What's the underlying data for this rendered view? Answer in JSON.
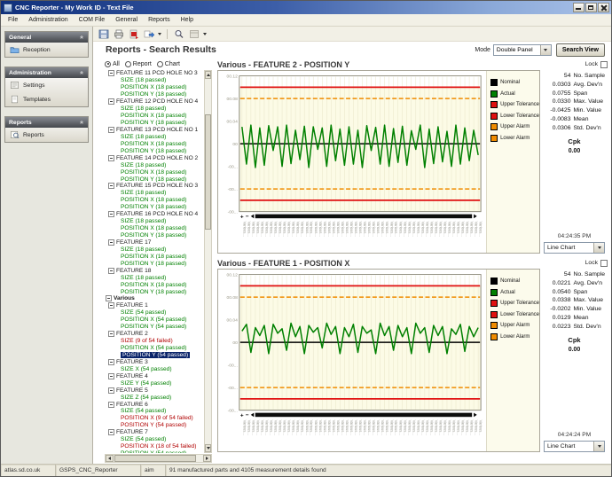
{
  "window": {
    "title": "CNC Reporter - My Work ID - Text File",
    "controls": [
      "minimize",
      "maximize",
      "close"
    ]
  },
  "menu": {
    "items": [
      "File",
      "Administration",
      "COM File",
      "General",
      "Reports",
      "Help"
    ]
  },
  "toolbar": {
    "icons": [
      "save-icon",
      "print-icon",
      "pdf-export-icon",
      "export-icon",
      "caret",
      "separator",
      "zoom-icon",
      "preview-icon",
      "caret"
    ]
  },
  "sidebar": {
    "panels": [
      {
        "title": "General",
        "items": [
          {
            "label": "Reception",
            "icon": "folder-icon"
          }
        ]
      },
      {
        "title": "Administration",
        "items": [
          {
            "label": "Settings",
            "icon": "settings-icon"
          },
          {
            "label": "Templates",
            "icon": "template-icon"
          }
        ]
      },
      {
        "title": "Reports",
        "items": [
          {
            "label": "Reports",
            "icon": "report-search-icon"
          }
        ]
      }
    ]
  },
  "main": {
    "heading": "Reports - Search Results",
    "mode_label": "Mode",
    "mode_value": "Double Panel",
    "search_view_label": "Search View",
    "filter_radios": [
      {
        "label": "All",
        "selected": true
      },
      {
        "label": "Report",
        "selected": false
      },
      {
        "label": "Chart",
        "selected": false
      }
    ]
  },
  "tree": {
    "nodes": [
      {
        "level": 1,
        "text": "FEATURE 11 PCD HOLE NO 3",
        "kind": "h"
      },
      {
        "level": 2,
        "text": "SIZE (18 passed)",
        "kind": "g"
      },
      {
        "level": 2,
        "text": "POSITION X (18 passed)",
        "kind": "g"
      },
      {
        "level": 2,
        "text": "POSITION Y (18 passed)",
        "kind": "g"
      },
      {
        "level": 1,
        "text": "FEATURE 12 PCD HOLE NO 4",
        "kind": "h"
      },
      {
        "level": 2,
        "text": "SIZE (18 passed)",
        "kind": "g"
      },
      {
        "level": 2,
        "text": "POSITION X (18 passed)",
        "kind": "g"
      },
      {
        "level": 2,
        "text": "POSITION Y (18 passed)",
        "kind": "g"
      },
      {
        "level": 1,
        "text": "FEATURE 13 PCD HOLE NO 1",
        "kind": "h"
      },
      {
        "level": 2,
        "text": "SIZE (18 passed)",
        "kind": "g"
      },
      {
        "level": 2,
        "text": "POSITION X (18 passed)",
        "kind": "g"
      },
      {
        "level": 2,
        "text": "POSITION Y (18 passed)",
        "kind": "g"
      },
      {
        "level": 1,
        "text": "FEATURE 14 PCD HOLE NO 2",
        "kind": "h"
      },
      {
        "level": 2,
        "text": "SIZE (18 passed)",
        "kind": "g"
      },
      {
        "level": 2,
        "text": "POSITION X (18 passed)",
        "kind": "g"
      },
      {
        "level": 2,
        "text": "POSITION Y (18 passed)",
        "kind": "g"
      },
      {
        "level": 1,
        "text": "FEATURE 15 PCD HOLE NO 3",
        "kind": "h"
      },
      {
        "level": 2,
        "text": "SIZE (18 passed)",
        "kind": "g"
      },
      {
        "level": 2,
        "text": "POSITION X (18 passed)",
        "kind": "g"
      },
      {
        "level": 2,
        "text": "POSITION Y (18 passed)",
        "kind": "g"
      },
      {
        "level": 1,
        "text": "FEATURE 16 PCD HOLE NO 4",
        "kind": "h"
      },
      {
        "level": 2,
        "text": "SIZE (18 passed)",
        "kind": "g"
      },
      {
        "level": 2,
        "text": "POSITION X (18 passed)",
        "kind": "g"
      },
      {
        "level": 2,
        "text": "POSITION Y (18 passed)",
        "kind": "g"
      },
      {
        "level": 1,
        "text": "FEATURE 17",
        "kind": "h"
      },
      {
        "level": 2,
        "text": "SIZE (18 passed)",
        "kind": "g"
      },
      {
        "level": 2,
        "text": "POSITION X (18 passed)",
        "kind": "g"
      },
      {
        "level": 2,
        "text": "POSITION Y (18 passed)",
        "kind": "g"
      },
      {
        "level": 1,
        "text": "FEATURE 18",
        "kind": "h"
      },
      {
        "level": 2,
        "text": "SIZE (18 passed)",
        "kind": "g"
      },
      {
        "level": 2,
        "text": "POSITION X (18 passed)",
        "kind": "g"
      },
      {
        "level": 2,
        "text": "POSITION Y (18 passed)",
        "kind": "g"
      },
      {
        "level": 0,
        "text": "Various",
        "kind": "hb"
      },
      {
        "level": 1,
        "text": "FEATURE 1",
        "kind": "h"
      },
      {
        "level": 2,
        "text": "SIZE (54 passed)",
        "kind": "g"
      },
      {
        "level": 2,
        "text": "POSITION X (54 passed)",
        "kind": "g"
      },
      {
        "level": 2,
        "text": "POSITION Y (54 passed)",
        "kind": "g"
      },
      {
        "level": 1,
        "text": "FEATURE 2",
        "kind": "h"
      },
      {
        "level": 2,
        "text": "SIZE (9 of 54 failed)",
        "kind": "r"
      },
      {
        "level": 2,
        "text": "POSITION X (54 passed)",
        "kind": "g"
      },
      {
        "level": 2,
        "text": "POSITION Y (54 passed)",
        "kind": "sel"
      },
      {
        "level": 1,
        "text": "FEATURE 3",
        "kind": "h"
      },
      {
        "level": 2,
        "text": "SIZE X (54 passed)",
        "kind": "g"
      },
      {
        "level": 1,
        "text": "FEATURE 4",
        "kind": "h"
      },
      {
        "level": 2,
        "text": "SIZE Y (54 passed)",
        "kind": "g"
      },
      {
        "level": 1,
        "text": "FEATURE 5",
        "kind": "h"
      },
      {
        "level": 2,
        "text": "SIZE Z (54 passed)",
        "kind": "g"
      },
      {
        "level": 1,
        "text": "FEATURE 6",
        "kind": "h"
      },
      {
        "level": 2,
        "text": "SIZE (54 passed)",
        "kind": "g"
      },
      {
        "level": 2,
        "text": "POSITION X (9 of 54 failed)",
        "kind": "r"
      },
      {
        "level": 2,
        "text": "POSITION Y (54 passed)",
        "kind": "r"
      },
      {
        "level": 1,
        "text": "FEATURE 7",
        "kind": "h"
      },
      {
        "level": 2,
        "text": "SIZE (54 passed)",
        "kind": "g"
      },
      {
        "level": 2,
        "text": "POSITION X (18 of 54 failed)",
        "kind": "r"
      },
      {
        "level": 2,
        "text": "POSITION Y (54 passed)",
        "kind": "g"
      }
    ]
  },
  "charts": [
    {
      "lock_label": "Lock",
      "stats": [
        [
          "54",
          "No. Sample"
        ],
        [
          "0.0303",
          "Avg. Dev'n"
        ],
        [
          "0.0755",
          "Span"
        ],
        [
          "0.0330",
          "Max. Value"
        ],
        [
          "-0.0425",
          "Min. Value"
        ],
        [
          "-0.0083",
          "Mean"
        ],
        [
          "0.0306",
          "Std. Dev'n"
        ]
      ],
      "cpk_label": "Cpk",
      "cpk_value": "0.00",
      "timestamp": "04:24:35 PM",
      "chart_type_value": "Line Chart"
    },
    {
      "lock_label": "Lock",
      "stats": [
        [
          "54",
          "No. Sample"
        ],
        [
          "0.0221",
          "Avg. Dev'n"
        ],
        [
          "0.0540",
          "Span"
        ],
        [
          "0.0338",
          "Max. Value"
        ],
        [
          "-0.0202",
          "Min. Value"
        ],
        [
          "0.0129",
          "Mean"
        ],
        [
          "0.0223",
          "Std. Dev'n"
        ]
      ],
      "cpk_label": "Cpk",
      "cpk_value": "0.00",
      "timestamp": "04:24:24 PM",
      "chart_type_value": "Line Chart"
    }
  ],
  "chart_data": [
    {
      "type": "line",
      "title": "Various - FEATURE 2 - POSITION Y",
      "n_samples": 54,
      "x_tick_label": "Various...",
      "ylim": [
        -0.12,
        0.12
      ],
      "yticks": [
        0.12,
        0.08,
        0.04,
        0,
        -0.04,
        -0.08,
        -0.12
      ],
      "ytick_labels": [
        "00.12",
        "00.08",
        "00.04",
        "00",
        "-00...",
        "-00...",
        "-00..."
      ],
      "nominal": 0,
      "upper_tolerance": 0.1,
      "lower_tolerance": -0.1,
      "upper_alarm": 0.08,
      "lower_alarm": -0.08,
      "grid": true,
      "legend_position": "right",
      "legend": [
        {
          "label": "Nominal",
          "color": "#000000"
        },
        {
          "label": "Actual",
          "color": "#008000"
        },
        {
          "label": "Upper Tolerance",
          "color": "#e01010"
        },
        {
          "label": "Lower Tolerance",
          "color": "#e01010"
        },
        {
          "label": "Upper Alarm",
          "color": "#f08c00"
        },
        {
          "label": "Lower Alarm",
          "color": "#f08c00"
        }
      ],
      "series": [
        {
          "name": "Actual",
          "color": "#008000",
          "values": [
            0.03,
            -0.036,
            0.033,
            -0.042,
            0.028,
            -0.038,
            0.032,
            -0.012,
            0.03,
            -0.04,
            0.033,
            -0.035,
            0.024,
            -0.028,
            0.031,
            -0.042,
            0.03,
            -0.01,
            0.028,
            -0.04,
            0.033,
            -0.03,
            0.026,
            -0.038,
            0.03,
            -0.036,
            0.024,
            -0.042,
            0.032,
            -0.012,
            0.029,
            -0.036,
            0.033,
            -0.04,
            0.027,
            -0.033,
            0.031,
            -0.038,
            0.023,
            -0.01,
            0.033,
            -0.042,
            0.026,
            -0.035,
            0.03,
            -0.032,
            0.022,
            -0.04,
            0.033,
            -0.036,
            0.028,
            -0.03,
            0.024,
            -0.02
          ]
        }
      ]
    },
    {
      "type": "line",
      "title": "Various - FEATURE 1 - POSITION X",
      "n_samples": 54,
      "x_tick_label": "Various...",
      "ylim": [
        -0.12,
        0.12
      ],
      "yticks": [
        0.12,
        0.08,
        0.04,
        0,
        -0.04,
        -0.08,
        -0.12
      ],
      "ytick_labels": [
        "00.12",
        "00.08",
        "00.04",
        "00",
        "-00...",
        "-00...",
        "-00..."
      ],
      "nominal": 0,
      "upper_tolerance": 0.1,
      "lower_tolerance": -0.1,
      "upper_alarm": 0.08,
      "lower_alarm": -0.08,
      "grid": true,
      "legend_position": "right",
      "legend": [
        {
          "label": "Nominal",
          "color": "#000000"
        },
        {
          "label": "Actual",
          "color": "#008000"
        },
        {
          "label": "Upper Tolerance",
          "color": "#e01010"
        },
        {
          "label": "Lower Tolerance",
          "color": "#e01010"
        },
        {
          "label": "Upper Alarm",
          "color": "#f08c00"
        },
        {
          "label": "Lower Alarm",
          "color": "#f08c00"
        }
      ],
      "series": [
        {
          "name": "Actual",
          "color": "#008000",
          "values": [
            0.02,
            0.032,
            -0.018,
            0.026,
            0.012,
            0.03,
            -0.02,
            0.032,
            0.016,
            0.024,
            -0.014,
            0.034,
            0.01,
            0.028,
            -0.02,
            0.03,
            0.018,
            0.026,
            -0.01,
            0.034,
            0.014,
            0.028,
            -0.02,
            0.026,
            0.01,
            0.032,
            -0.018,
            0.028,
            0.016,
            0.022,
            -0.02,
            0.034,
            0.012,
            0.028,
            -0.014,
            0.03,
            0.01,
            0.026,
            -0.02,
            0.034,
            0.016,
            0.026,
            -0.018,
            0.03,
            0.012,
            0.028,
            -0.02,
            0.024,
            0.014,
            0.032,
            -0.016,
            0.028,
            0.01,
            0.026
          ]
        }
      ]
    }
  ],
  "statusbar": {
    "segments": [
      "atlas.sd.co.uk",
      "GSPS_CNC_Reporter",
      "aim",
      "91 manufactured parts and 4105 measurement details found"
    ]
  }
}
